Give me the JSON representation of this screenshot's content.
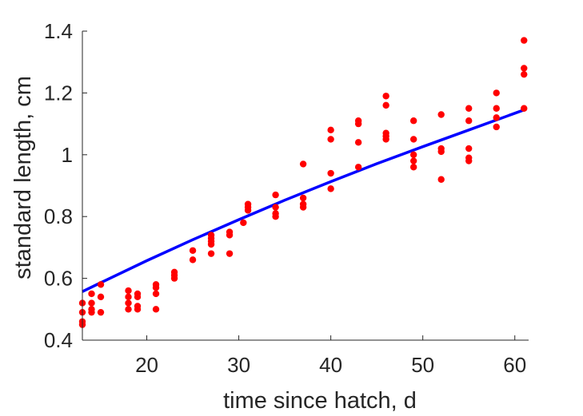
{
  "chart_data": {
    "type": "scatter",
    "title": "",
    "xlabel": "time since hatch, d",
    "ylabel": "standard length, cm",
    "xlim": [
      13,
      61.5
    ],
    "ylim": [
      0.4,
      1.4
    ],
    "xticks": [
      20,
      30,
      40,
      50,
      60
    ],
    "yticks": [
      0.4,
      0.6,
      0.8,
      1,
      1.2,
      1.4
    ],
    "xtick_labels": [
      "20",
      "30",
      "40",
      "50",
      "60"
    ],
    "ytick_labels": [
      "0.4",
      "0.6",
      "0.8",
      "1",
      "1.2",
      "1.4"
    ],
    "grid": false,
    "box": false,
    "series": [
      {
        "type": "scatter",
        "color": "#ff0000",
        "points": [
          [
            13,
            0.52
          ],
          [
            13,
            0.49
          ],
          [
            13,
            0.46
          ],
          [
            13,
            0.45
          ],
          [
            14,
            0.55
          ],
          [
            14,
            0.52
          ],
          [
            14,
            0.5
          ],
          [
            14,
            0.49
          ],
          [
            15,
            0.58
          ],
          [
            15,
            0.54
          ],
          [
            15,
            0.49
          ],
          [
            18,
            0.56
          ],
          [
            18,
            0.54
          ],
          [
            18,
            0.52
          ],
          [
            18,
            0.5
          ],
          [
            19,
            0.55
          ],
          [
            19,
            0.54
          ],
          [
            19,
            0.51
          ],
          [
            19,
            0.5
          ],
          [
            21,
            0.58
          ],
          [
            21,
            0.57
          ],
          [
            21,
            0.55
          ],
          [
            21,
            0.5
          ],
          [
            23,
            0.62
          ],
          [
            23,
            0.61
          ],
          [
            23,
            0.6
          ],
          [
            25,
            0.69
          ],
          [
            25,
            0.66
          ],
          [
            27,
            0.74
          ],
          [
            27,
            0.73
          ],
          [
            27,
            0.72
          ],
          [
            27,
            0.71
          ],
          [
            27,
            0.68
          ],
          [
            29,
            0.75
          ],
          [
            29,
            0.74
          ],
          [
            29,
            0.68
          ],
          [
            30.5,
            0.78
          ],
          [
            31,
            0.84
          ],
          [
            31,
            0.83
          ],
          [
            31,
            0.82
          ],
          [
            34,
            0.87
          ],
          [
            34,
            0.83
          ],
          [
            34,
            0.81
          ],
          [
            34,
            0.8
          ],
          [
            37,
            0.97
          ],
          [
            37,
            0.86
          ],
          [
            37,
            0.84
          ],
          [
            37,
            0.83
          ],
          [
            40,
            1.08
          ],
          [
            40,
            1.05
          ],
          [
            40,
            0.94
          ],
          [
            40,
            0.89
          ],
          [
            43,
            1.11
          ],
          [
            43,
            1.1
          ],
          [
            43,
            1.04
          ],
          [
            43,
            0.96
          ],
          [
            46,
            1.19
          ],
          [
            46,
            1.16
          ],
          [
            46,
            1.07
          ],
          [
            46,
            1.06
          ],
          [
            46,
            1.05
          ],
          [
            49,
            1.11
          ],
          [
            49,
            1.05
          ],
          [
            49,
            1.0
          ],
          [
            49,
            0.98
          ],
          [
            49,
            0.96
          ],
          [
            52,
            1.13
          ],
          [
            52,
            1.02
          ],
          [
            52,
            1.01
          ],
          [
            52,
            0.92
          ],
          [
            55,
            1.15
          ],
          [
            55,
            1.11
          ],
          [
            55,
            1.02
          ],
          [
            55,
            0.99
          ],
          [
            55,
            0.98
          ],
          [
            58,
            1.2
          ],
          [
            58,
            1.15
          ],
          [
            58,
            1.12
          ],
          [
            58,
            1.09
          ],
          [
            61,
            1.37
          ],
          [
            61,
            1.28
          ],
          [
            61,
            1.26
          ],
          [
            61,
            1.15
          ]
        ]
      },
      {
        "type": "line",
        "color": "#0000ff",
        "points": [
          [
            13,
            0.557
          ],
          [
            15,
            0.586
          ],
          [
            20,
            0.657
          ],
          [
            25,
            0.725
          ],
          [
            30,
            0.79
          ],
          [
            35,
            0.853
          ],
          [
            40,
            0.913
          ],
          [
            45,
            0.971
          ],
          [
            50,
            1.026
          ],
          [
            55,
            1.08
          ],
          [
            61,
            1.145
          ]
        ]
      }
    ]
  }
}
